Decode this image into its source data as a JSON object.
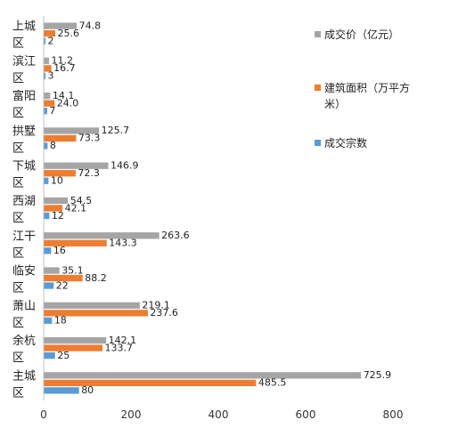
{
  "chart_data": {
    "type": "bar",
    "orientation": "horizontal",
    "categories": [
      "上城区",
      "滨江区",
      "富阳区",
      "拱墅区",
      "下城区",
      "西湖区",
      "江干区",
      "临安区",
      "萧山区",
      "余杭区",
      "主城区"
    ],
    "category_lines": [
      [
        "上城",
        "区"
      ],
      [
        "滨江",
        "区"
      ],
      [
        "富阳",
        "区"
      ],
      [
        "拱墅",
        "区"
      ],
      [
        "下城",
        "区"
      ],
      [
        "西湖",
        "区"
      ],
      [
        "江干",
        "区"
      ],
      [
        "临安",
        "区"
      ],
      [
        "萧山",
        "区"
      ],
      [
        "余杭",
        "区"
      ],
      [
        "主城",
        "区"
      ]
    ],
    "series": [
      {
        "name": "成交价（亿元）",
        "color": "#a5a5a5",
        "values": [
          74.8,
          11.2,
          14.1,
          125.7,
          146.9,
          54.5,
          263.6,
          35.1,
          219.1,
          142.1,
          725.9
        ],
        "labels": [
          "74.8",
          "11.2",
          "14.1",
          "125.7",
          "146.9",
          "54.5",
          "263.6",
          "35.1",
          "219.1",
          "142.1",
          "725.9"
        ]
      },
      {
        "name": "建筑面积（万平方米）",
        "color": "#ed7d31",
        "values": [
          25.6,
          16.7,
          24.0,
          73.3,
          72.3,
          42.1,
          143.3,
          88.2,
          237.6,
          133.7,
          485.5
        ],
        "labels": [
          "25.6",
          "16.7",
          "24.0",
          "73.3",
          "72.3",
          "42.1",
          "143.3",
          "88.2",
          "237.6",
          "133.7",
          "485.5"
        ]
      },
      {
        "name": "成交宗数",
        "color": "#5b9bd5",
        "values": [
          2,
          3,
          7,
          8,
          10,
          12,
          16,
          22,
          18,
          25,
          80
        ],
        "labels": [
          "2",
          "3",
          "7",
          "8",
          "10",
          "12",
          "16",
          "22",
          "18",
          "25",
          "80"
        ]
      }
    ],
    "xlim": [
      0,
      800
    ],
    "xticks": [
      "0",
      "200",
      "400",
      "600",
      "800"
    ],
    "grid": false,
    "legend_position": "right",
    "title": "",
    "xlabel": "",
    "ylabel": ""
  },
  "legend": {
    "items": [
      {
        "label_lines": [
          "成交价（亿元）"
        ],
        "color": "#a5a5a5",
        "icon": "square-swatch"
      },
      {
        "label_lines": [
          "建筑面积（万平方",
          "米）"
        ],
        "color": "#ed7d31",
        "icon": "square-swatch"
      },
      {
        "label_lines": [
          "成交宗数"
        ],
        "color": "#5b9bd5",
        "icon": "square-swatch"
      }
    ]
  }
}
